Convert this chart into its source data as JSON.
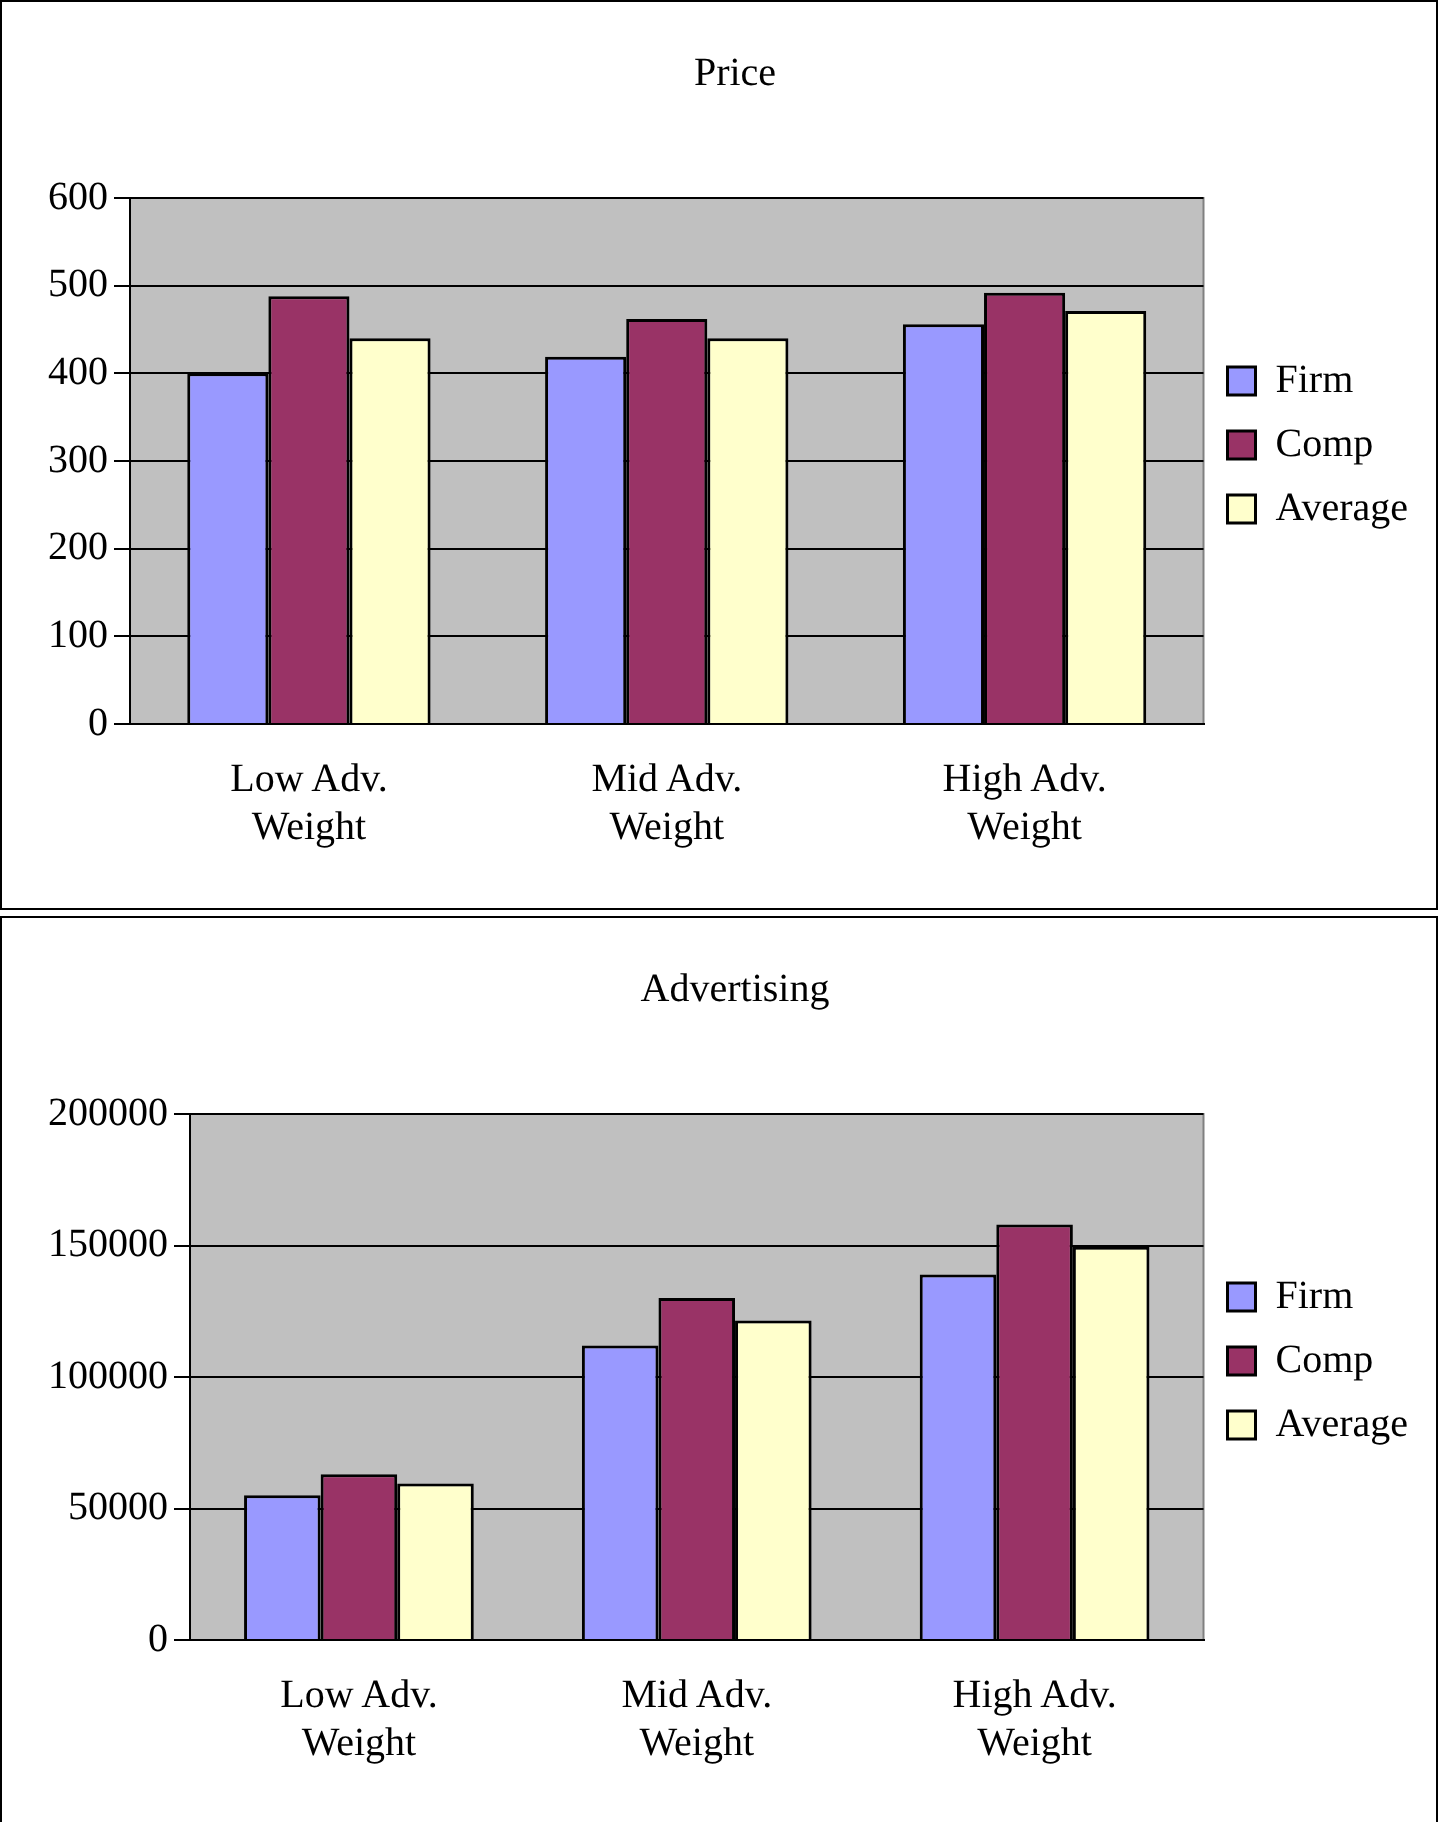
{
  "chart_data": [
    {
      "type": "bar",
      "title": "Price",
      "categories": [
        "Low Adv. Weight",
        "Mid Adv. Weight",
        "High Adv. Weight"
      ],
      "series": [
        {
          "name": "Firm",
          "color": "#9999ff",
          "values": [
            400,
            419,
            456
          ]
        },
        {
          "name": "Comp",
          "color": "#993366",
          "values": [
            488,
            462,
            492
          ]
        },
        {
          "name": "Average",
          "color": "#ffffcc",
          "values": [
            440,
            440,
            471
          ]
        }
      ],
      "ylim": [
        0,
        600
      ],
      "yticks": [
        0,
        100,
        200,
        300,
        400,
        500,
        600
      ],
      "grid": "y",
      "legend": "right"
    },
    {
      "type": "bar",
      "title": "Advertising",
      "categories": [
        "Low Adv. Weight",
        "Mid Adv. Weight",
        "High Adv. Weight"
      ],
      "series": [
        {
          "name": "Firm",
          "color": "#9999ff",
          "values": [
            55000,
            112000,
            139000
          ]
        },
        {
          "name": "Comp",
          "color": "#993366",
          "values": [
            63000,
            130000,
            158000
          ]
        },
        {
          "name": "Average",
          "color": "#ffffcc",
          "values": [
            59500,
            121500,
            149500
          ]
        }
      ],
      "ylim": [
        0,
        200000
      ],
      "yticks": [
        0,
        50000,
        100000,
        150000,
        200000
      ],
      "grid": "y",
      "legend": "right"
    }
  ]
}
